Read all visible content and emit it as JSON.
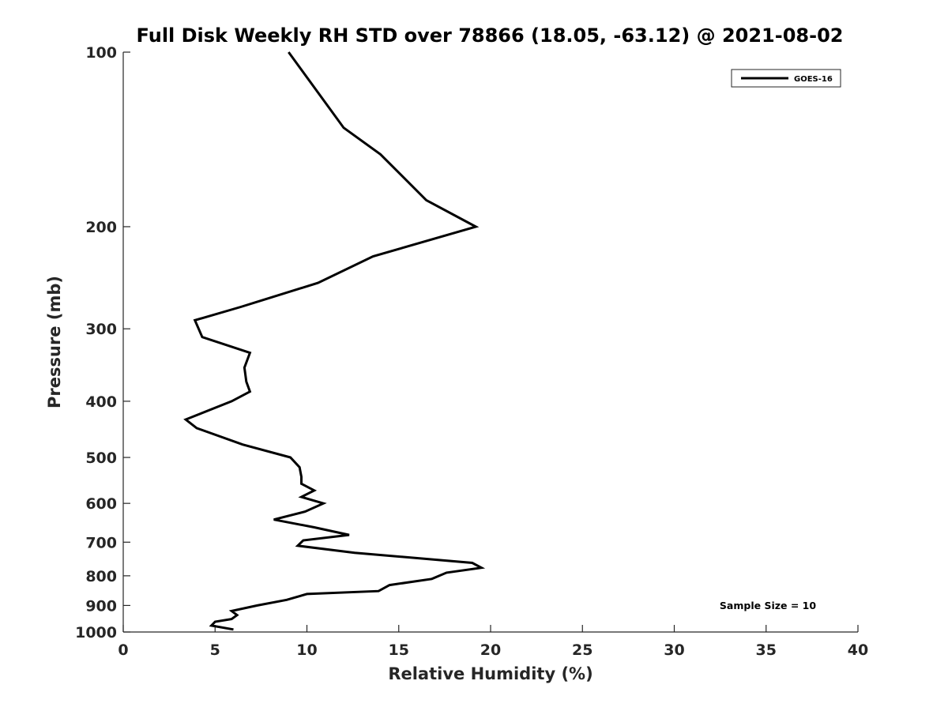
{
  "chart_data": {
    "type": "line",
    "title": "Full Disk Weekly RH STD over 78866 (18.05, -63.12) @ 2021-08-02",
    "xlabel": "Relative Humidity (%)",
    "ylabel": "Pressure (mb)",
    "xlim": [
      0,
      40
    ],
    "ylim": [
      100,
      1000
    ],
    "y_scale": "log",
    "y_reversed": true,
    "x_ticks": [
      0,
      5,
      10,
      15,
      20,
      25,
      30,
      35,
      40
    ],
    "y_ticks": [
      100,
      200,
      300,
      400,
      500,
      600,
      700,
      800,
      900,
      1000
    ],
    "grid": false,
    "legend_position": "top-right",
    "series": [
      {
        "name": "GOES-16",
        "color": "#000000",
        "points": [
          [
            9.0,
            100
          ],
          [
            12.0,
            135
          ],
          [
            14.0,
            150
          ],
          [
            16.5,
            180
          ],
          [
            19.2,
            200
          ],
          [
            13.6,
            225
          ],
          [
            10.6,
            250
          ],
          [
            6.4,
            275
          ],
          [
            3.9,
            290
          ],
          [
            4.3,
            310
          ],
          [
            6.9,
            330
          ],
          [
            6.6,
            350
          ],
          [
            6.7,
            370
          ],
          [
            6.9,
            385
          ],
          [
            5.9,
            400
          ],
          [
            3.4,
            430
          ],
          [
            4.0,
            445
          ],
          [
            6.5,
            475
          ],
          [
            9.1,
            500
          ],
          [
            9.6,
            520
          ],
          [
            9.7,
            540
          ],
          [
            9.7,
            555
          ],
          [
            10.4,
            570
          ],
          [
            9.7,
            585
          ],
          [
            10.9,
            600
          ],
          [
            9.9,
            620
          ],
          [
            8.2,
            640
          ],
          [
            10.4,
            660
          ],
          [
            12.3,
            680
          ],
          [
            9.8,
            695
          ],
          [
            9.5,
            710
          ],
          [
            12.6,
            730
          ],
          [
            19.0,
            760
          ],
          [
            19.5,
            775
          ],
          [
            17.6,
            790
          ],
          [
            16.8,
            810
          ],
          [
            14.5,
            830
          ],
          [
            13.9,
            850
          ],
          [
            10.0,
            860
          ],
          [
            8.9,
            880
          ],
          [
            7.3,
            900
          ],
          [
            5.9,
            920
          ],
          [
            6.2,
            935
          ],
          [
            5.9,
            950
          ],
          [
            5.0,
            960
          ],
          [
            4.8,
            975
          ],
          [
            6.0,
            990
          ]
        ]
      }
    ],
    "annotation": "Sample Size = 10"
  }
}
